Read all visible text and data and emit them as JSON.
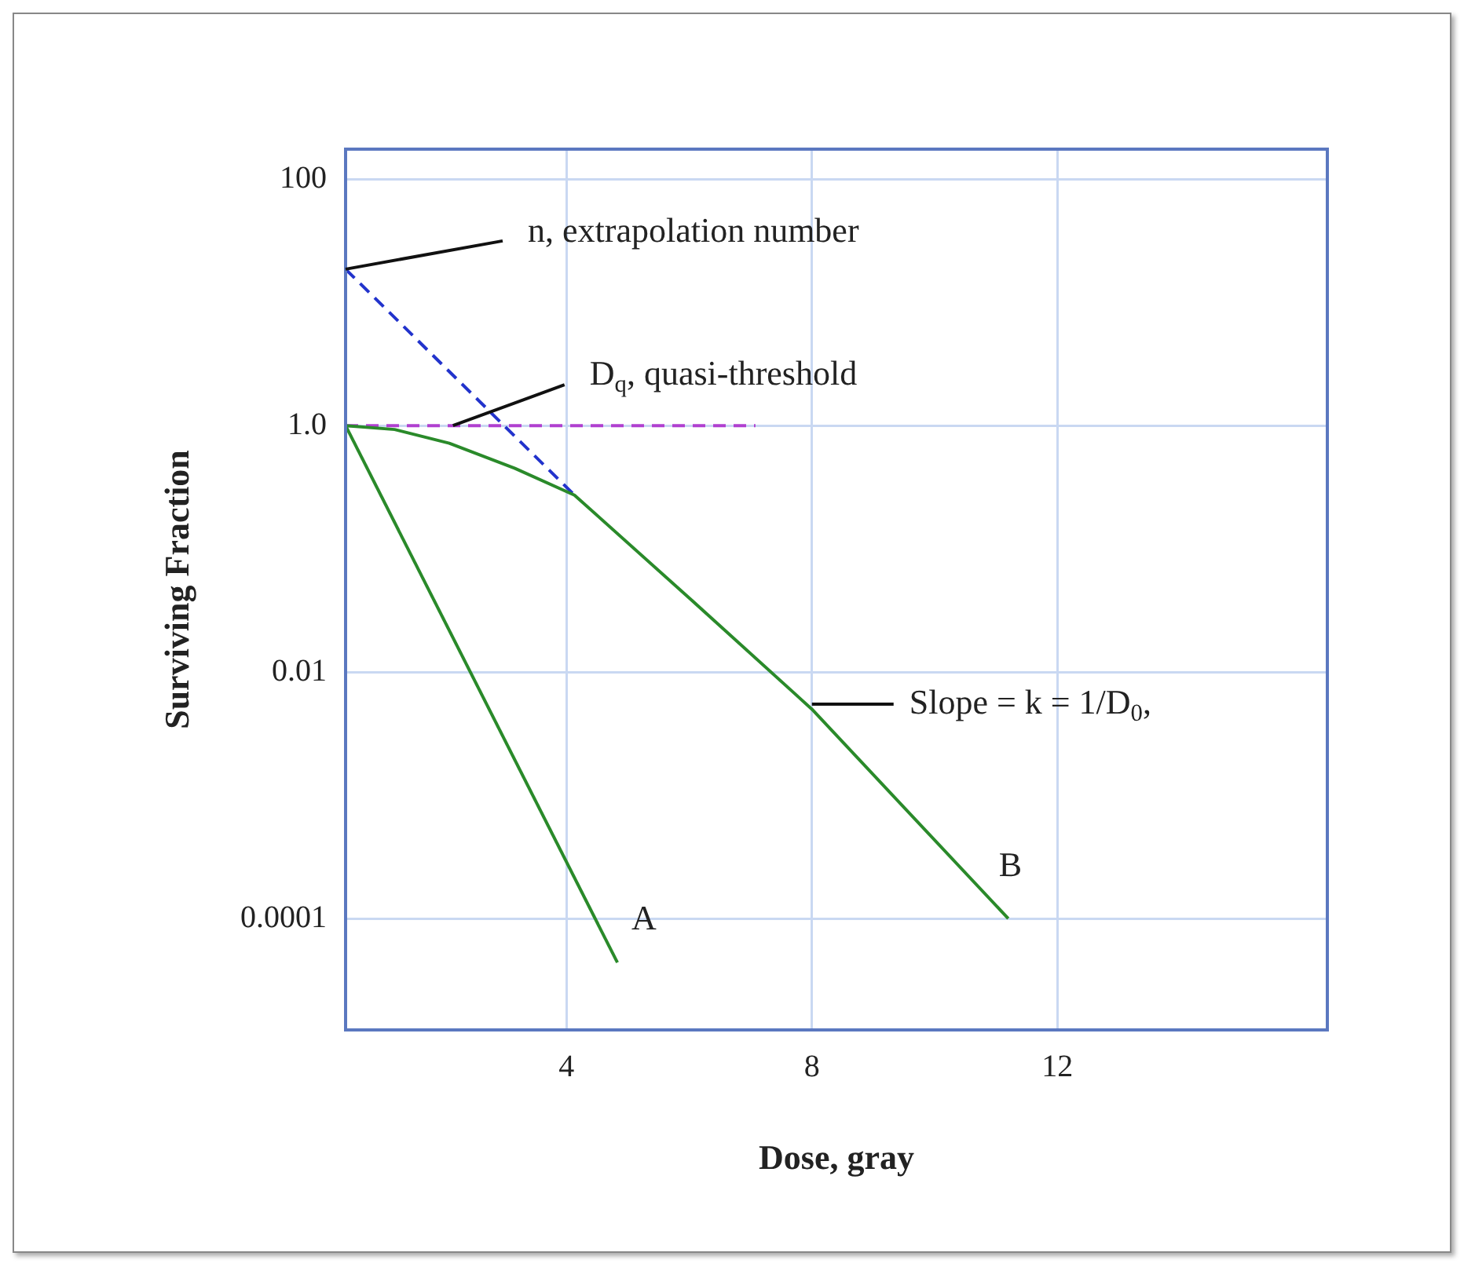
{
  "chart_data": {
    "type": "line",
    "xlabel": "Dose, gray",
    "ylabel": "Surviving Fraction",
    "log": "y",
    "grid": true,
    "marker": "none",
    "xlim": [
      0.4,
      16.4
    ],
    "xticks": [
      4,
      8,
      12
    ],
    "ylim": [
      1.25e-05,
      175
    ],
    "yticks": [
      {
        "value": 100,
        "label": "100"
      },
      {
        "value": 1,
        "label": "1.0"
      },
      {
        "value": 0.01,
        "label": "0.01"
      },
      {
        "value": 0.0001,
        "label": "0.0001"
      }
    ],
    "series": [
      {
        "color": "#2a8a2a",
        "line_style": "solid",
        "x": [
          0.4,
          4.83
        ],
        "values": [
          1,
          4.4e-05
        ]
      },
      {
        "color": "#2a8a2a",
        "line_style": "solid",
        "x": [
          0.4,
          1.2,
          2.09,
          3.16,
          4.13,
          6,
          8,
          11.2
        ],
        "values": [
          1,
          0.93,
          0.72,
          0.45,
          0.273,
          0.04,
          0.005,
          0.0001
        ]
      },
      {
        "color": "#2233cc",
        "line_style": "dashed",
        "x": [
          0.4,
          4.13
        ],
        "values": [
          18.6,
          0.273
        ]
      },
      {
        "color": "#b040d0",
        "line_style": "dashed",
        "x": [
          0.4,
          7.08
        ],
        "values": [
          1,
          1
        ]
      }
    ],
    "annotations": [
      {
        "text": "n, extrapolation number",
        "x": 0.4,
        "y": 18.6
      },
      {
        "text": "D$_{q}$, quasi-threshold",
        "x": 2.15,
        "y": 1
      },
      {
        "text": "Slope = k = 1/D$_{0}$,",
        "x": 8,
        "y": 0.0055
      },
      {
        "text": "A",
        "x": 4.83,
        "y": 4.4e-05
      },
      {
        "text": "B",
        "x": 11.2,
        "y": 0.0001
      }
    ]
  }
}
